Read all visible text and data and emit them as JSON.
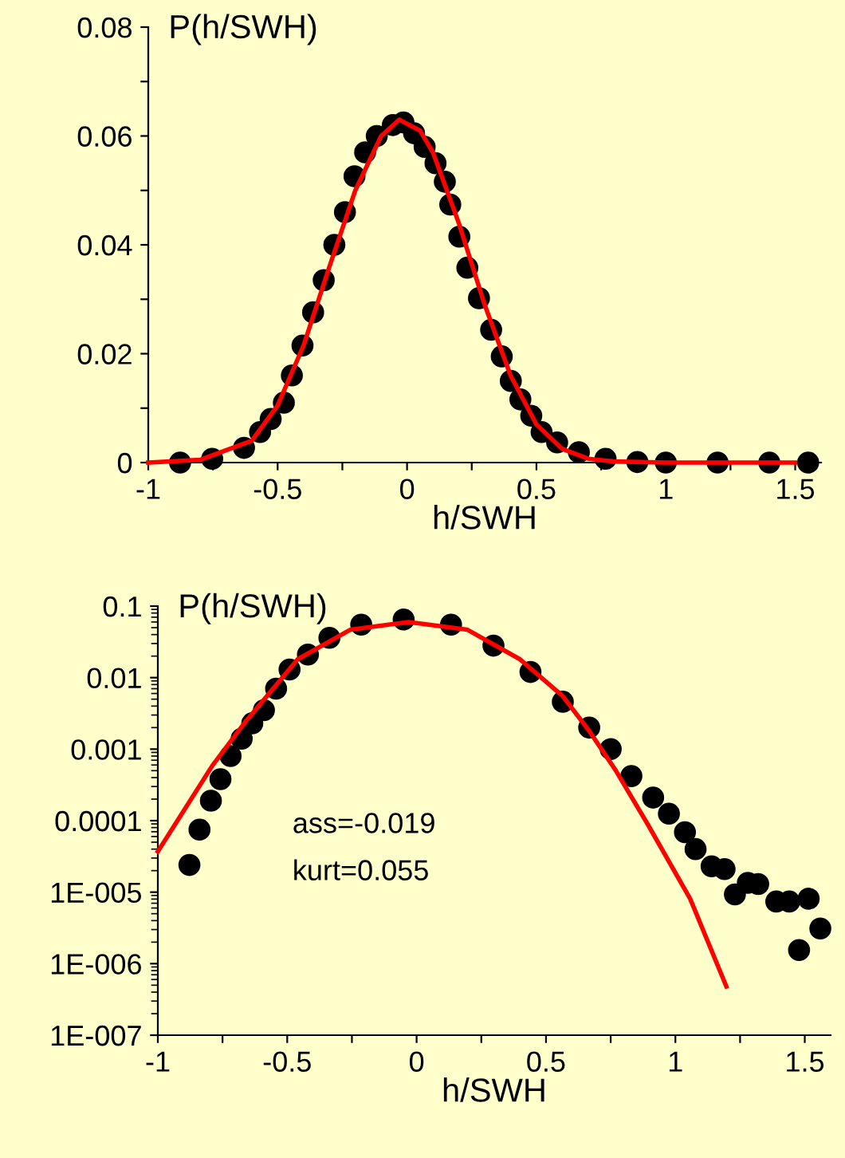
{
  "chart_data": [
    {
      "type": "scatter",
      "xlabel": "h/SWH",
      "ylabel": "P(h/SWH)",
      "xlim": [
        -1,
        1.6
      ],
      "ylim": [
        0,
        0.08
      ],
      "xticks": [
        -1,
        {
          "value": -0.75,
          "label": null
        },
        -0.5,
        {
          "value": -0.25,
          "label": null
        },
        0,
        {
          "value": 0.25,
          "label": null
        },
        0.5,
        {
          "value": 0.75,
          "label": null
        },
        1,
        {
          "value": 1.25,
          "label": null
        },
        1.5
      ],
      "yticks": [
        0,
        {
          "value": 0.01,
          "label": null
        },
        0.02,
        {
          "value": 0.03,
          "label": null
        },
        0.04,
        {
          "value": 0.05,
          "label": null
        },
        0.06,
        {
          "value": 0.07,
          "label": null
        },
        0.08
      ],
      "series": [
        {
          "color": "#000000",
          "marker": "circle",
          "x": [
            -0.877,
            -0.753,
            -0.63,
            -0.568,
            -0.527,
            -0.476,
            -0.445,
            -0.404,
            -0.363,
            -0.322,
            -0.281,
            -0.24,
            -0.203,
            -0.162,
            -0.117,
            -0.055,
            -0.014,
            0.027,
            0.068,
            0.11,
            0.146,
            0.167,
            0.202,
            0.233,
            0.278,
            0.325,
            0.366,
            0.401,
            0.438,
            0.48,
            0.52,
            0.58,
            0.664,
            0.767,
            0.89,
            1.0,
            1.2,
            1.4,
            1.55
          ],
          "values": [
            0,
            0.0007,
            0.0027,
            0.0056,
            0.008,
            0.011,
            0.016,
            0.0215,
            0.0276,
            0.0335,
            0.04,
            0.046,
            0.0526,
            0.057,
            0.06,
            0.062,
            0.0625,
            0.0605,
            0.058,
            0.055,
            0.0516,
            0.0474,
            0.0415,
            0.0358,
            0.0302,
            0.0244,
            0.0195,
            0.015,
            0.0116,
            0.0086,
            0.0056,
            0.0037,
            0.0019,
            0.0007,
            0.0001,
            0,
            0,
            0,
            0
          ]
        },
        {
          "type": "line",
          "color": "#ff0000",
          "x": [
            -1,
            -0.8,
            -0.6,
            -0.5,
            -0.4,
            -0.3,
            -0.2,
            -0.1,
            -0.03,
            0.05,
            0.1,
            0.2,
            0.3,
            0.4,
            0.5,
            0.6,
            0.7,
            0.8,
            1.0,
            1.2,
            1.5
          ],
          "values": [
            0,
            0.0005,
            0.004,
            0.0105,
            0.0215,
            0.036,
            0.05,
            0.06,
            0.063,
            0.061,
            0.057,
            0.044,
            0.029,
            0.016,
            0.007,
            0.0025,
            0.0007,
            0.0002,
            0,
            0,
            0
          ]
        }
      ]
    },
    {
      "type": "scatter",
      "xlabel": "h/SWH",
      "ylabel": "P(h/SWH)",
      "log": "y",
      "xlim": [
        -1,
        1.6
      ],
      "ylim": [
        1e-07,
        0.1
      ],
      "xticks": [
        -1,
        {
          "value": -0.75,
          "label": null
        },
        -0.5,
        {
          "value": -0.25,
          "label": null
        },
        0,
        {
          "value": 0.25,
          "label": null
        },
        0.5,
        {
          "value": 0.75,
          "label": null
        },
        1,
        {
          "value": 1.25,
          "label": null
        },
        1.5
      ],
      "yticks": [
        {
          "value": 1e-07,
          "label": "1E-007"
        },
        {
          "value": 1e-06,
          "label": "1E-006"
        },
        {
          "value": 1e-05,
          "label": "1E-005"
        },
        0.0001,
        0.001,
        0.01,
        0.1
      ],
      "annotations": [
        "ass=-0.019",
        "kurt=0.055"
      ],
      "series": [
        {
          "color": "#000000",
          "marker": "circle",
          "x": [
            -0.878,
            -0.839,
            -0.795,
            -0.758,
            -0.719,
            -0.676,
            -0.635,
            -0.59,
            -0.543,
            -0.491,
            -0.42,
            -0.337,
            -0.214,
            -0.05,
            0.133,
            0.297,
            0.44,
            0.565,
            0.667,
            0.75,
            0.83,
            0.914,
            0.975,
            1.037,
            1.078,
            1.14,
            1.19,
            1.23,
            1.28,
            1.32,
            1.39,
            1.44,
            1.478,
            1.515,
            1.56
          ],
          "values": [
            2.4e-05,
            7.5e-05,
            0.00019,
            0.00038,
            0.0008,
            0.0014,
            0.0023,
            0.0035,
            0.007,
            0.013,
            0.021,
            0.036,
            0.055,
            0.065,
            0.055,
            0.028,
            0.012,
            0.0046,
            0.002,
            0.001,
            0.00042,
            0.00021,
            0.000125,
            6.9e-05,
            4e-05,
            2.3e-05,
            2.1e-05,
            9.3e-06,
            1.35e-05,
            1.3e-05,
            7.4e-06,
            7.4e-06,
            1.55e-06,
            8.1e-06,
            3.1e-06
          ]
        },
        {
          "type": "line",
          "color": "#ff0000",
          "x": [
            -1,
            -0.789,
            -0.666,
            -0.46,
            -0.255,
            -0.03,
            0.195,
            0.4,
            0.565,
            0.667,
            0.77,
            0.893,
            1.057,
            1.197
          ],
          "values": [
            3.7e-05,
            0.00059,
            0.0023,
            0.018,
            0.047,
            0.06,
            0.047,
            0.018,
            0.0055,
            0.0018,
            0.0005,
            8.9e-05,
            8.1e-06,
            4.8e-07
          ]
        }
      ]
    }
  ]
}
